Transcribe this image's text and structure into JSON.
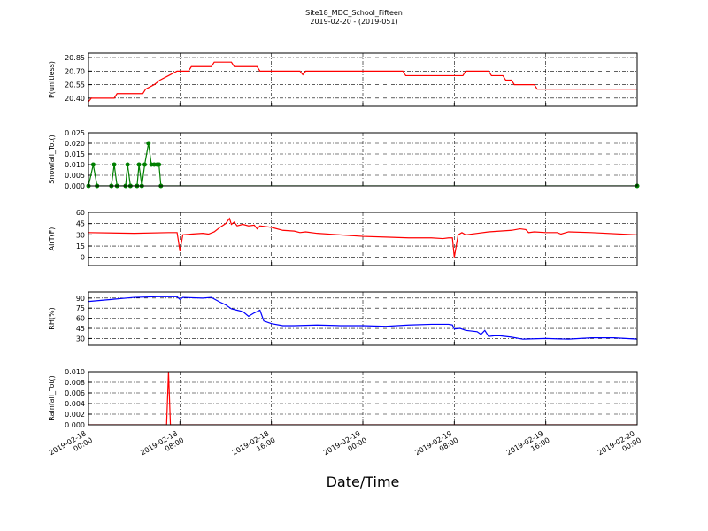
{
  "title": "Site18_MDC_School_Fifteen",
  "subtitle": "2019-02-20 - (2019-051)",
  "xlabel": "Date/Time",
  "chart_data": [
    {
      "type": "line",
      "ylabel": "P(unitless)",
      "grid": true,
      "xlim": [
        "2019-02-18 00:00",
        "2019-02-20 00:00"
      ],
      "xticks": [
        "2019-02-18 00:00",
        "2019-02-18 08:00",
        "2019-02-18 16:00",
        "2019-02-19 00:00",
        "2019-02-19 08:00",
        "2019-02-19 16:00",
        "2019-02-20 00:00"
      ],
      "ylim": [
        20.31,
        20.9
      ],
      "yticks": [
        {
          "value": 20.4,
          "label": "20.40"
        },
        {
          "value": 20.55,
          "label": "20.55"
        },
        {
          "value": 20.7,
          "label": "20.70"
        },
        {
          "value": 20.85,
          "label": "20.85"
        }
      ],
      "x": [
        "2019-02-18 00:00",
        "2019-02-18 00:15",
        "2019-02-18 02:15",
        "2019-02-18 02:30",
        "2019-02-18 04:45",
        "2019-02-18 05:00",
        "2019-02-18 05:45",
        "2019-02-18 06:15",
        "2019-02-18 07:00",
        "2019-02-18 07:45",
        "2019-02-18 08:45",
        "2019-02-18 09:00",
        "2019-02-18 10:45",
        "2019-02-18 11:00",
        "2019-02-18 12:30",
        "2019-02-18 12:45",
        "2019-02-18 14:45",
        "2019-02-18 15:00",
        "2019-02-18 18:30",
        "2019-02-18 18:45",
        "2019-02-18 19:00",
        "2019-02-19 03:30",
        "2019-02-19 03:45",
        "2019-02-19 08:45",
        "2019-02-19 09:00",
        "2019-02-19 11:00",
        "2019-02-19 11:15",
        "2019-02-19 12:15",
        "2019-02-19 12:30",
        "2019-02-19 13:00",
        "2019-02-19 13:15",
        "2019-02-19 15:00",
        "2019-02-19 15:15",
        "2019-02-20 00:00"
      ],
      "series": [
        {
          "color": "#ff0000",
          "values": [
            20.36,
            20.4,
            20.4,
            20.45,
            20.45,
            20.5,
            20.55,
            20.6,
            20.65,
            20.7,
            20.7,
            20.75,
            20.75,
            20.8,
            20.8,
            20.75,
            20.75,
            20.7,
            20.7,
            20.66,
            20.7,
            20.7,
            20.65,
            20.65,
            20.7,
            20.7,
            20.65,
            20.65,
            20.6,
            20.6,
            20.55,
            20.55,
            20.5,
            20.5
          ]
        }
      ]
    },
    {
      "type": "line",
      "ylabel": "Snowfall_Tot()",
      "grid": true,
      "marker": true,
      "xlim": [
        "2019-02-18 00:00",
        "2019-02-20 00:00"
      ],
      "xticks": [
        "2019-02-18 00:00",
        "2019-02-18 08:00",
        "2019-02-18 16:00",
        "2019-02-19 00:00",
        "2019-02-19 08:00",
        "2019-02-19 16:00",
        "2019-02-20 00:00"
      ],
      "ylim": [
        0,
        0.025
      ],
      "yticks": [
        {
          "value": 0,
          "label": "0.000"
        },
        {
          "value": 0.005,
          "label": "0.005"
        },
        {
          "value": 0.01,
          "label": "0.010"
        },
        {
          "value": 0.015,
          "label": "0.015"
        },
        {
          "value": 0.02,
          "label": "0.020"
        },
        {
          "value": 0.025,
          "label": "0.025"
        }
      ],
      "x": [
        "2019-02-18 00:00",
        "2019-02-18 00:25",
        "2019-02-18 00:45",
        "2019-02-18 02:00",
        "2019-02-18 02:15",
        "2019-02-18 02:30",
        "2019-02-18 03:15",
        "2019-02-18 03:25",
        "2019-02-18 03:40",
        "2019-02-18 04:15",
        "2019-02-18 04:25",
        "2019-02-18 04:40",
        "2019-02-18 04:55",
        "2019-02-18 05:15",
        "2019-02-18 05:30",
        "2019-02-18 05:45",
        "2019-02-18 06:00",
        "2019-02-18 06:10",
        "2019-02-18 06:20",
        "2019-02-20 00:00"
      ],
      "series": [
        {
          "color": "#007f00",
          "values": [
            0,
            0.01,
            0,
            0,
            0.01,
            0,
            0,
            0.01,
            0,
            0,
            0.01,
            0,
            0.01,
            0.02,
            0.01,
            0.01,
            0.01,
            0.01,
            0,
            0
          ]
        }
      ]
    },
    {
      "type": "line",
      "ylabel": "AirT(F)",
      "grid": true,
      "xlim": [
        "2019-02-18 00:00",
        "2019-02-20 00:00"
      ],
      "xticks": [
        "2019-02-18 00:00",
        "2019-02-18 08:00",
        "2019-02-18 16:00",
        "2019-02-19 00:00",
        "2019-02-19 08:00",
        "2019-02-19 16:00",
        "2019-02-20 00:00"
      ],
      "ylim": [
        -11,
        60
      ],
      "yticks": [
        0,
        15,
        30,
        45,
        60
      ],
      "x": [
        "2019-02-18 00:00",
        "2019-02-18 04:00",
        "2019-02-18 07:00",
        "2019-02-18 07:45",
        "2019-02-18 07:50",
        "2019-02-18 08:00",
        "2019-02-18 08:15",
        "2019-02-18 09:00",
        "2019-02-18 10:00",
        "2019-02-18 10:30",
        "2019-02-18 11:00",
        "2019-02-18 11:30",
        "2019-02-18 12:00",
        "2019-02-18 12:20",
        "2019-02-18 12:30",
        "2019-02-18 12:45",
        "2019-02-18 13:00",
        "2019-02-18 13:30",
        "2019-02-18 14:00",
        "2019-02-18 14:30",
        "2019-02-18 14:45",
        "2019-02-18 15:00",
        "2019-02-18 16:00",
        "2019-02-18 17:00",
        "2019-02-18 18:00",
        "2019-02-18 18:30",
        "2019-02-18 19:00",
        "2019-02-18 20:00",
        "2019-02-18 22:00",
        "2019-02-19 00:00",
        "2019-02-19 02:00",
        "2019-02-19 04:00",
        "2019-02-19 06:00",
        "2019-02-19 07:00",
        "2019-02-19 07:30",
        "2019-02-19 07:50",
        "2019-02-19 08:00",
        "2019-02-19 08:20",
        "2019-02-19 08:40",
        "2019-02-19 09:00",
        "2019-02-19 10:00",
        "2019-02-19 11:00",
        "2019-02-19 12:00",
        "2019-02-19 13:00",
        "2019-02-19 13:45",
        "2019-02-19 14:15",
        "2019-02-19 14:30",
        "2019-02-19 15:00",
        "2019-02-19 16:00",
        "2019-02-19 17:00",
        "2019-02-19 17:20",
        "2019-02-19 18:00",
        "2019-02-19 20:00",
        "2019-02-20 00:00"
      ],
      "series": [
        {
          "color": "#ff0000",
          "values": [
            33,
            32,
            33,
            33,
            25,
            8,
            30,
            31,
            32,
            31,
            34,
            40,
            45,
            52,
            44,
            47,
            42,
            44,
            42,
            43,
            38,
            42,
            40,
            36,
            35,
            33,
            34,
            32,
            30,
            28,
            27,
            26,
            26,
            25,
            26,
            26,
            0,
            30,
            33,
            30,
            32,
            34,
            35,
            36,
            38,
            37,
            33,
            34,
            33,
            33,
            31,
            34,
            33,
            30
          ]
        }
      ]
    },
    {
      "type": "line",
      "ylabel": "RH(%)",
      "grid": true,
      "xlim": [
        "2019-02-18 00:00",
        "2019-02-20 00:00"
      ],
      "xticks": [
        "2019-02-18 00:00",
        "2019-02-18 08:00",
        "2019-02-18 16:00",
        "2019-02-19 00:00",
        "2019-02-19 08:00",
        "2019-02-19 16:00",
        "2019-02-20 00:00"
      ],
      "ylim": [
        20,
        99
      ],
      "yticks": [
        30,
        45,
        60,
        75,
        90
      ],
      "x": [
        "2019-02-18 00:00",
        "2019-02-18 02:00",
        "2019-02-18 04:00",
        "2019-02-18 06:00",
        "2019-02-18 07:45",
        "2019-02-18 08:00",
        "2019-02-18 08:15",
        "2019-02-18 10:00",
        "2019-02-18 10:45",
        "2019-02-18 11:30",
        "2019-02-18 12:00",
        "2019-02-18 12:30",
        "2019-02-18 13:00",
        "2019-02-18 13:30",
        "2019-02-18 14:00",
        "2019-02-18 14:30",
        "2019-02-18 15:00",
        "2019-02-18 15:20",
        "2019-02-18 16:00",
        "2019-02-18 17:00",
        "2019-02-18 18:00",
        "2019-02-18 20:00",
        "2019-02-18 22:00",
        "2019-02-19 00:00",
        "2019-02-19 02:00",
        "2019-02-19 04:00",
        "2019-02-19 06:00",
        "2019-02-19 07:30",
        "2019-02-19 07:50",
        "2019-02-19 08:00",
        "2019-02-19 08:30",
        "2019-02-19 09:00",
        "2019-02-19 10:00",
        "2019-02-19 10:20",
        "2019-02-19 10:40",
        "2019-02-19 11:00",
        "2019-02-19 11:30",
        "2019-02-19 12:00",
        "2019-02-19 13:00",
        "2019-02-19 14:00",
        "2019-02-19 16:00",
        "2019-02-19 18:00",
        "2019-02-19 20:00",
        "2019-02-19 22:00",
        "2019-02-20 00:00"
      ],
      "series": [
        {
          "color": "#0000ff",
          "values": [
            85,
            88,
            91,
            92,
            92,
            88,
            91,
            90,
            91,
            84,
            80,
            74,
            72,
            70,
            63,
            68,
            72,
            56,
            52,
            49,
            49,
            50,
            49,
            49,
            48,
            50,
            51,
            51,
            50,
            44,
            45,
            42,
            40,
            36,
            42,
            33,
            34,
            34,
            32,
            29,
            30,
            29,
            31,
            31,
            29
          ]
        }
      ]
    },
    {
      "type": "line",
      "ylabel": "Rainfall_Tot()",
      "grid": true,
      "show_xtick_labels": true,
      "xlim": [
        "2019-02-18 00:00",
        "2019-02-20 00:00"
      ],
      "xticks": [
        "2019-02-18 00:00",
        "2019-02-18 08:00",
        "2019-02-18 16:00",
        "2019-02-19 00:00",
        "2019-02-19 08:00",
        "2019-02-19 16:00",
        "2019-02-20 00:00"
      ],
      "ylim": [
        0,
        0.01
      ],
      "yticks": [
        {
          "value": 0,
          "label": "0.000"
        },
        {
          "value": 0.002,
          "label": "0.002"
        },
        {
          "value": 0.004,
          "label": "0.004"
        },
        {
          "value": 0.006,
          "label": "0.006"
        },
        {
          "value": 0.008,
          "label": "0.008"
        },
        {
          "value": 0.01,
          "label": "0.010"
        }
      ],
      "x": [
        "2019-02-18 00:00",
        "2019-02-18 06:50",
        "2019-02-18 07:00",
        "2019-02-18 07:10",
        "2019-02-20 00:00"
      ],
      "series": [
        {
          "color": "#ff0000",
          "values": [
            0,
            0,
            0.01,
            0,
            0
          ]
        }
      ]
    }
  ]
}
